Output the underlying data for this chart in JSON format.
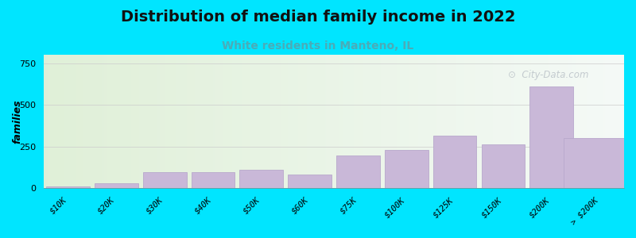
{
  "title": "Distribution of median family income in 2022",
  "subtitle": "White residents in Manteno, IL",
  "categories": [
    "$10K",
    "$20K",
    "$30K",
    "$40K",
    "$50K",
    "$60K",
    "$75K",
    "$100K",
    "$125K",
    "$150K",
    "$200K",
    "> $200K"
  ],
  "values": [
    10,
    28,
    95,
    95,
    110,
    80,
    195,
    230,
    315,
    265,
    610,
    300
  ],
  "bar_color": "#c9b8d8",
  "bar_edge_color": "#b8a8cc",
  "background_color": "#00e5ff",
  "title_fontsize": 14,
  "subtitle_fontsize": 10,
  "subtitle_color": "#4aacb8",
  "ylabel": "families",
  "ylim": [
    0,
    800
  ],
  "yticks": [
    0,
    250,
    500,
    750
  ],
  "watermark": "City-Data.com",
  "watermark_color": "#b0b8c0"
}
